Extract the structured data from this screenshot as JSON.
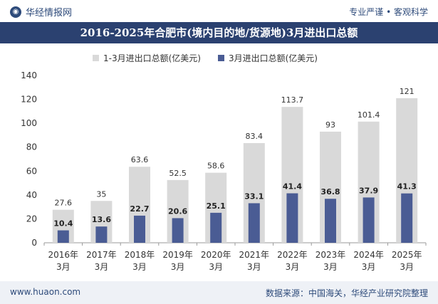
{
  "header": {
    "brand": "华经情报网",
    "brand_icon": "logo-icon",
    "tagline": "专业严谨 • 客观科学"
  },
  "footer": {
    "website": "www.huaon.com",
    "source": "数据来源：中国海关，华经产业研究院整理"
  },
  "colors": {
    "header_bg": "#2b4170",
    "series_total": "#d9d9d9",
    "series_march": "#4a5c94"
  },
  "chart_data": {
    "type": "bar",
    "title": "2016-2025年合肥市(境内目的地/货源地)3月进出口总额",
    "categories": [
      [
        "2016年",
        "3月"
      ],
      [
        "2017年",
        "3月"
      ],
      [
        "2018年",
        "3月"
      ],
      [
        "2019年",
        "3月"
      ],
      [
        "2020年",
        "3月"
      ],
      [
        "2021年",
        "3月"
      ],
      [
        "2022年",
        "3月"
      ],
      [
        "2023年",
        "3月"
      ],
      [
        "2024年",
        "3月"
      ],
      [
        "2025年",
        "3月"
      ]
    ],
    "series": [
      {
        "name": "1-3月进出口总额(亿美元)",
        "values": [
          27.6,
          35,
          63.6,
          52.5,
          58.6,
          83.4,
          113.7,
          93,
          101.4,
          121
        ]
      },
      {
        "name": "3月进出口总额(亿美元)",
        "values": [
          10.4,
          13.6,
          22.7,
          20.6,
          25.1,
          33.1,
          41.4,
          36.8,
          37.9,
          41.3
        ]
      }
    ],
    "ylim": [
      0,
      140
    ],
    "yticks": [
      0,
      20,
      40,
      60,
      80,
      100,
      120,
      140
    ],
    "legend_position": "top",
    "grid": false
  }
}
